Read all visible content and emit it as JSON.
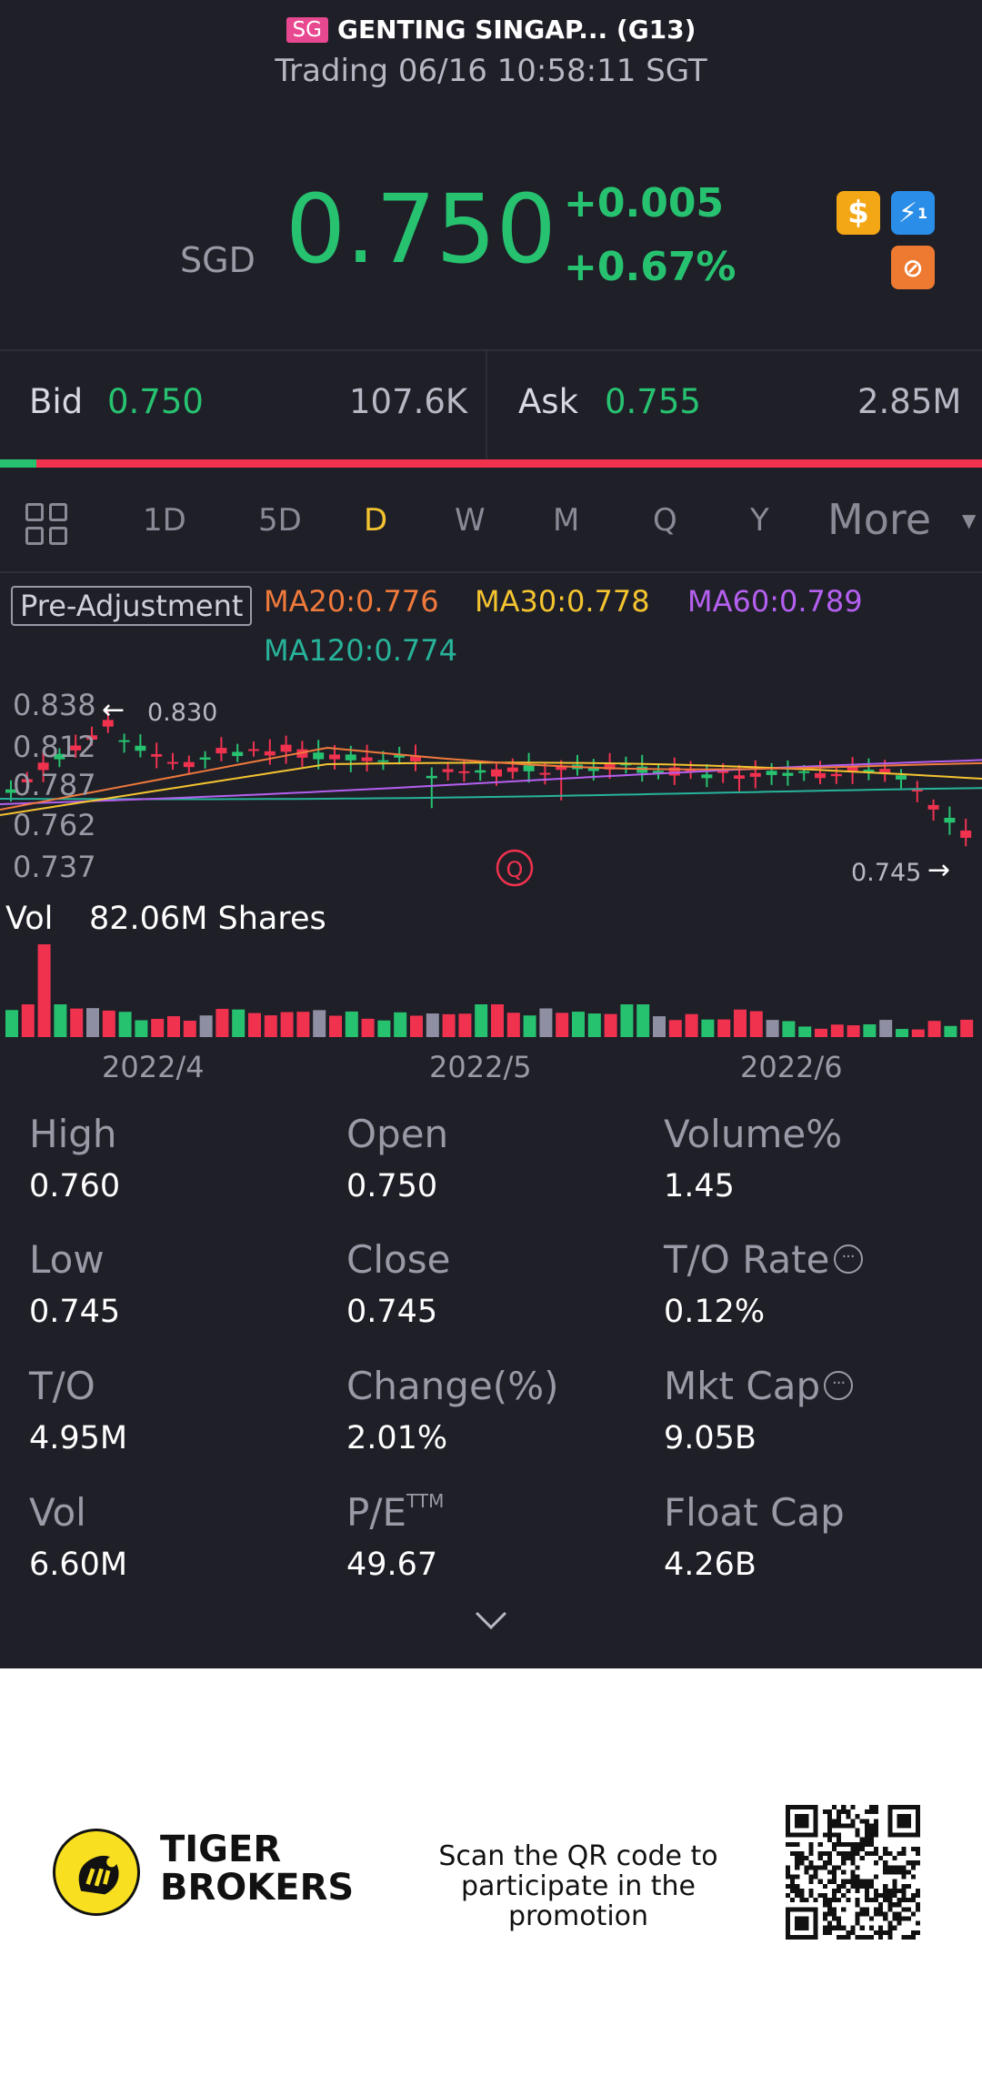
{
  "header": {
    "market_flag": "SG",
    "name": "GENTING SINGAP... (G13)",
    "status": "Trading 06/16 10:58:11 SGT"
  },
  "quote": {
    "currency": "SGD",
    "price": "0.750",
    "change": "+0.005",
    "change_pct": "+0.67%",
    "price_color": "#27c270"
  },
  "icons": [
    "dollar-icon",
    "lightning-icon",
    "prohibited-icon"
  ],
  "bidask": {
    "bid_label": "Bid",
    "bid_price": "0.750",
    "bid_size": "107.6K",
    "ask_label": "Ask",
    "ask_price": "0.755",
    "ask_size": "2.85M",
    "buy_ratio": 0.04
  },
  "tabs": {
    "items": [
      "1D",
      "5D",
      "D",
      "W",
      "M",
      "Q",
      "Y"
    ],
    "active": "D",
    "more": "More"
  },
  "indicators": {
    "adjustment": "Pre-Adjustment",
    "ma20": "MA20:0.776",
    "ma30": "MA30:0.778",
    "ma60": "MA60:0.789",
    "ma120": "MA120:0.774",
    "colors": {
      "ma20": "#f07a3c",
      "ma30": "#f4c430",
      "ma60": "#b560f0",
      "ma120": "#27b39a"
    }
  },
  "chart_data": {
    "type": "candlestick",
    "y_ticks": [
      "0.838",
      "0.812",
      "0.787",
      "0.762",
      "0.737"
    ],
    "ylim": [
      0.737,
      0.838
    ],
    "high_marker": "0.830",
    "low_marker": "0.745",
    "event_marker": "Q",
    "x_ticks": [
      "2022/4",
      "2022/5",
      "2022/6"
    ],
    "volume_label": "Vol",
    "volume_value": "82.06M Shares"
  },
  "stats": [
    {
      "label": "High",
      "value": "0.760"
    },
    {
      "label": "Open",
      "value": "0.750"
    },
    {
      "label": "Volume%",
      "value": "1.45"
    },
    {
      "label": "Low",
      "value": "0.745"
    },
    {
      "label": "Close",
      "value": "0.745"
    },
    {
      "label": "T/O Rate",
      "value": "0.12%"
    },
    {
      "label": "T/O",
      "value": "4.95M"
    },
    {
      "label": "Change(%)",
      "value": "2.01%"
    },
    {
      "label": "Mkt Cap",
      "value": "9.05B"
    },
    {
      "label": "Vol",
      "value": "6.60M"
    },
    {
      "label": "P/E",
      "value": "49.67"
    },
    {
      "label": "Float Cap",
      "value": "4.26B"
    }
  ],
  "pe_superscript": "TTM",
  "footer": {
    "brand_line1": "TIGER",
    "brand_line2": "BROKERS",
    "promo_line1": "Scan the QR code to",
    "promo_line2": "participate in the promotion"
  }
}
